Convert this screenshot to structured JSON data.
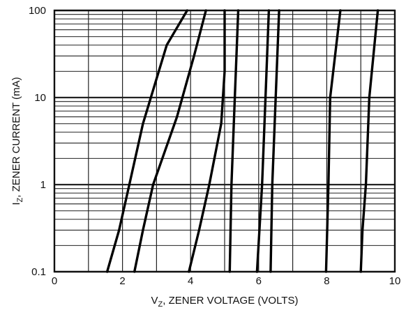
{
  "chart_data": {
    "type": "line",
    "x_axis": {
      "label_main": "V",
      "label_sub": "Z",
      "label_rest": ", ZENER VOLTAGE (VOLTS)",
      "range": [
        0,
        10
      ],
      "ticks": [
        0,
        2,
        4,
        6,
        8,
        10
      ],
      "tick_labels": [
        "0",
        "2",
        "4",
        "6",
        "8",
        "10"
      ]
    },
    "y_axis": {
      "label_main": "I",
      "label_sub": "Z",
      "label_rest": ", ZENER CURRENT (mA)",
      "scale": "log",
      "range": [
        0.1,
        100
      ],
      "ticks": [
        0.1,
        1,
        10,
        100
      ],
      "tick_labels": [
        "0.1",
        "1",
        "10",
        "100"
      ]
    },
    "grid": true,
    "series": [
      {
        "points": [
          [
            1.55,
            0.1
          ],
          [
            1.9,
            0.3
          ],
          [
            2.2,
            1
          ],
          [
            2.6,
            5
          ],
          [
            3.3,
            40
          ],
          [
            3.9,
            100
          ]
        ]
      },
      {
        "points": [
          [
            2.35,
            0.1
          ],
          [
            2.6,
            0.3
          ],
          [
            2.9,
            1
          ],
          [
            3.6,
            6
          ],
          [
            4.1,
            30
          ],
          [
            4.45,
            100
          ]
        ]
      },
      {
        "points": [
          [
            3.95,
            0.1
          ],
          [
            4.25,
            0.3
          ],
          [
            4.55,
            1
          ],
          [
            4.9,
            5
          ],
          [
            5.0,
            20
          ],
          [
            5.0,
            100
          ]
        ]
      },
      {
        "points": [
          [
            5.15,
            0.1
          ],
          [
            5.2,
            1
          ],
          [
            5.3,
            10
          ],
          [
            5.4,
            100
          ]
        ]
      },
      {
        "points": [
          [
            5.95,
            0.1
          ],
          [
            6.1,
            1
          ],
          [
            6.2,
            10
          ],
          [
            6.3,
            100
          ]
        ]
      },
      {
        "points": [
          [
            6.35,
            0.1
          ],
          [
            6.4,
            1
          ],
          [
            6.5,
            10
          ],
          [
            6.6,
            100
          ]
        ]
      },
      {
        "points": [
          [
            7.98,
            0.1
          ],
          [
            8.05,
            1
          ],
          [
            8.1,
            10
          ],
          [
            8.4,
            100
          ]
        ]
      },
      {
        "points": [
          [
            9.0,
            0.1
          ],
          [
            9.05,
            0.3
          ],
          [
            9.15,
            1
          ],
          [
            9.25,
            10
          ],
          [
            9.5,
            100
          ]
        ]
      }
    ]
  }
}
